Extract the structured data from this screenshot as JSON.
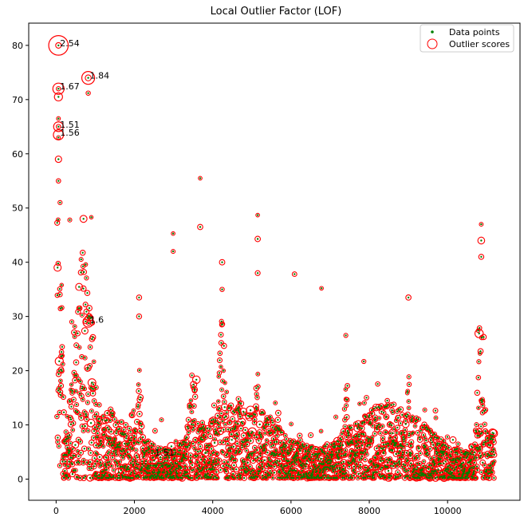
{
  "chart_data": {
    "type": "scatter",
    "title": "Local Outlier Factor (LOF)",
    "xlabel": "",
    "ylabel": "",
    "xlim": [
      -700,
      11850
    ],
    "ylim": [
      -3.9,
      84.1
    ],
    "xticks": [
      0,
      2000,
      4000,
      6000,
      8000,
      10000
    ],
    "yticks": [
      0,
      10,
      20,
      30,
      40,
      50,
      60,
      70,
      80
    ],
    "grid": false,
    "legend": {
      "position": "top-right",
      "entries": [
        "Data points",
        "Outlier scores"
      ]
    },
    "colors": {
      "points": "#008000",
      "scores": "#ff0000"
    },
    "series": [
      {
        "name": "Data points",
        "sample_points": [
          [
            60,
            80
          ],
          [
            60,
            72
          ],
          [
            60,
            70.5
          ],
          [
            60,
            66.5
          ],
          [
            60,
            65
          ],
          [
            60,
            63
          ],
          [
            60,
            59
          ],
          [
            60,
            55
          ],
          [
            820,
            74
          ],
          [
            820,
            71.2
          ],
          [
            3680,
            55.5
          ],
          [
            3680,
            46.5
          ],
          [
            5150,
            48.7
          ],
          [
            5150,
            44.3
          ],
          [
            5150,
            38
          ],
          [
            2990,
            45.3
          ],
          [
            2990,
            42
          ],
          [
            6090,
            37.8
          ],
          [
            6780,
            35.2
          ],
          [
            9000,
            33.5
          ],
          [
            10860,
            47
          ],
          [
            10860,
            44
          ],
          [
            10860,
            41
          ],
          [
            2120,
            33.5
          ],
          [
            2120,
            30
          ],
          [
            4240,
            40
          ],
          [
            4240,
            35
          ],
          [
            7400,
            26.5
          ],
          [
            7860,
            21.7
          ],
          [
            2480,
            0.5
          ],
          [
            2580,
            1.2
          ],
          [
            1000,
            1
          ],
          [
            3300,
            2
          ],
          [
            5800,
            1.5
          ],
          [
            9600,
            1.5
          ],
          [
            10400,
            1
          ],
          [
            350,
            47.8
          ],
          [
            700,
            48
          ],
          [
            900,
            48.3
          ],
          [
            100,
            51
          ],
          [
            400,
            29
          ],
          [
            1100,
            13.7
          ],
          [
            1350,
            5
          ],
          [
            6500,
            2
          ],
          [
            8100,
            1
          ],
          [
            11100,
            2.5
          ]
        ]
      },
      {
        "name": "Outlier scores"
      }
    ],
    "annotations": [
      {
        "text": "2.54",
        "x": 60,
        "y": 80,
        "score": 2.54
      },
      {
        "text": "1.84",
        "x": 820,
        "y": 74,
        "score": 1.84
      },
      {
        "text": "1.67",
        "x": 60,
        "y": 72,
        "score": 1.67
      },
      {
        "text": "1.51",
        "x": 60,
        "y": 65,
        "score": 1.51
      },
      {
        "text": "1.56",
        "x": 60,
        "y": 63.5,
        "score": 1.56
      },
      {
        "text": "1.6",
        "x": 820,
        "y": 29,
        "score": 1.6
      },
      {
        "text": "1.51",
        "x": 2480,
        "y": 4.5,
        "score": 1.51
      }
    ]
  }
}
